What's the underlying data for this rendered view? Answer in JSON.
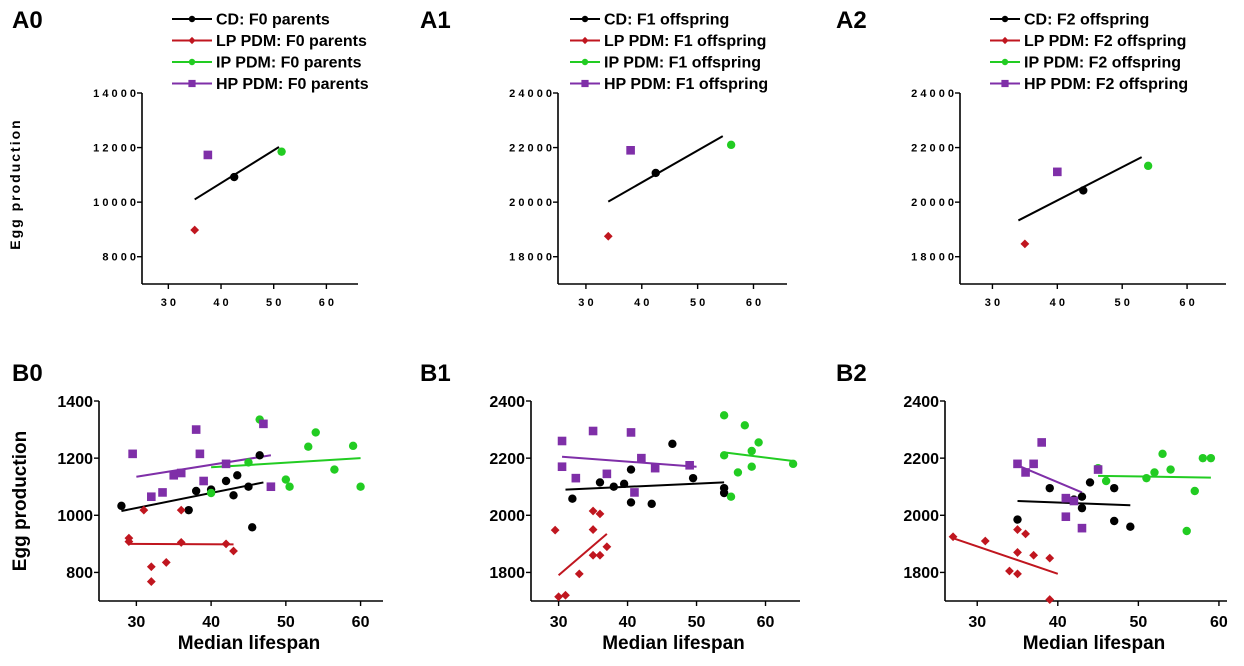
{
  "colors": {
    "CD": "#000000",
    "LP": "#c0161f",
    "IP": "#22cc22",
    "HP": "#7f2fa8"
  },
  "chart_data": [
    {
      "id": "A0",
      "type": "scatter",
      "label": "A0",
      "xlabel": "",
      "ylabel": "Egg production",
      "xlim": [
        25,
        66
      ],
      "ylim": [
        7000,
        14000
      ],
      "xticks": [
        30,
        40,
        50,
        60
      ],
      "yticks": [
        8000,
        10000,
        12000,
        14000
      ],
      "xtick_labels": [
        "3 0",
        "4 0",
        "5 0",
        "6 0"
      ],
      "ytick_labels": [
        "8 0 0 0",
        "1 0 0 0 0",
        "1 2 0 0 0",
        "1 4 0 0 0"
      ],
      "legend": [
        {
          "group": "CD",
          "name": "CD: F0 parents",
          "marker": "circle"
        },
        {
          "group": "LP",
          "name": "LP PDM: F0 parents",
          "marker": "diamond"
        },
        {
          "group": "IP",
          "name": "IP PDM: F0 parents",
          "marker": "circle"
        },
        {
          "group": "HP",
          "name": "HP PDM: F0 parents",
          "marker": "square"
        }
      ],
      "series": [
        {
          "group": "CD",
          "marker": "circle",
          "points": [
            [
              42.5,
              10920
            ]
          ]
        },
        {
          "group": "LP",
          "marker": "diamond",
          "points": [
            [
              35,
              8980
            ]
          ]
        },
        {
          "group": "IP",
          "marker": "circle",
          "points": [
            [
              51.5,
              11850
            ]
          ]
        },
        {
          "group": "HP",
          "marker": "square",
          "points": [
            [
              37.5,
              11730
            ]
          ]
        }
      ],
      "fits": [
        {
          "group": "CD",
          "from": [
            35,
            10100
          ],
          "to": [
            51,
            12020
          ]
        }
      ]
    },
    {
      "id": "A1",
      "type": "scatter",
      "label": "A1",
      "xlabel": "",
      "ylabel": "",
      "xlim": [
        25,
        66
      ],
      "ylim": [
        17000,
        24000
      ],
      "xticks": [
        30,
        40,
        50,
        60
      ],
      "yticks": [
        18000,
        20000,
        22000,
        24000
      ],
      "xtick_labels": [
        "3 0",
        "4 0",
        "5 0",
        "6 0"
      ],
      "ytick_labels": [
        "1 8 0 0 0",
        "2 0 0 0 0",
        "2 2 0 0 0",
        "2 4 0 0 0"
      ],
      "legend": [
        {
          "group": "CD",
          "name": "CD: F1 offspring",
          "marker": "circle"
        },
        {
          "group": "LP",
          "name": "LP PDM: F1 offspring",
          "marker": "diamond"
        },
        {
          "group": "IP",
          "name": "IP PDM: F1 offspring",
          "marker": "circle"
        },
        {
          "group": "HP",
          "name": "HP PDM: F1 offspring",
          "marker": "square"
        }
      ],
      "series": [
        {
          "group": "CD",
          "marker": "circle",
          "points": [
            [
              42.5,
              21070
            ]
          ]
        },
        {
          "group": "LP",
          "marker": "diamond",
          "points": [
            [
              34,
              18750
            ]
          ]
        },
        {
          "group": "IP",
          "marker": "circle",
          "points": [
            [
              56,
              22100
            ]
          ]
        },
        {
          "group": "HP",
          "marker": "square",
          "points": [
            [
              38,
              21900
            ]
          ]
        }
      ],
      "fits": [
        {
          "group": "CD",
          "from": [
            34,
            20020
          ],
          "to": [
            54.5,
            22420
          ]
        }
      ]
    },
    {
      "id": "A2",
      "type": "scatter",
      "label": "A2",
      "xlabel": "",
      "ylabel": "",
      "xlim": [
        25,
        66
      ],
      "ylim": [
        17000,
        24000
      ],
      "xticks": [
        30,
        40,
        50,
        60
      ],
      "yticks": [
        18000,
        20000,
        22000,
        24000
      ],
      "xtick_labels": [
        "3 0",
        "4 0",
        "5 0",
        "6 0"
      ],
      "ytick_labels": [
        "1 8 0 0 0",
        "2 0 0 0 0",
        "2 2 0 0 0",
        "2 4 0 0 0"
      ],
      "legend": [
        {
          "group": "CD",
          "name": "CD: F2 offspring",
          "marker": "circle"
        },
        {
          "group": "LP",
          "name": "LP PDM: F2 offspring",
          "marker": "diamond"
        },
        {
          "group": "IP",
          "name": "IP PDM: F2 offspring",
          "marker": "circle"
        },
        {
          "group": "HP",
          "name": "HP PDM: F2 offspring",
          "marker": "square"
        }
      ],
      "series": [
        {
          "group": "CD",
          "marker": "circle",
          "points": [
            [
              44,
              20430
            ]
          ]
        },
        {
          "group": "LP",
          "marker": "diamond",
          "points": [
            [
              35,
              18470
            ]
          ]
        },
        {
          "group": "IP",
          "marker": "circle",
          "points": [
            [
              54,
              21330
            ]
          ]
        },
        {
          "group": "HP",
          "marker": "square",
          "points": [
            [
              40,
              21110
            ]
          ]
        }
      ],
      "fits": [
        {
          "group": "CD",
          "from": [
            34,
            19330
          ],
          "to": [
            53,
            21650
          ]
        }
      ]
    },
    {
      "id": "B0",
      "type": "scatter",
      "label": "B0",
      "xlabel": "Median lifespan",
      "ylabel": "Egg production",
      "xlim": [
        25,
        63
      ],
      "ylim": [
        700,
        1400
      ],
      "xticks": [
        30,
        40,
        50,
        60
      ],
      "yticks": [
        800,
        1000,
        1200,
        1400
      ],
      "xtick_labels": [
        "30",
        "40",
        "50",
        "60"
      ],
      "ytick_labels": [
        "800",
        "1000",
        "1200",
        "1400"
      ],
      "legend": [],
      "series": [
        {
          "group": "CD",
          "marker": "circle",
          "points": [
            [
              28,
              1033
            ],
            [
              37,
              1018
            ],
            [
              38,
              1085
            ],
            [
              40,
              1090
            ],
            [
              42,
              1120
            ],
            [
              43,
              1070
            ],
            [
              43.5,
              1140
            ],
            [
              45,
              1100
            ],
            [
              45.5,
              958
            ],
            [
              46.5,
              1210
            ]
          ]
        },
        {
          "group": "LP",
          "marker": "diamond",
          "points": [
            [
              29,
              920
            ],
            [
              29,
              908
            ],
            [
              31,
              1018
            ],
            [
              32,
              820
            ],
            [
              32,
              768
            ],
            [
              34,
              835
            ],
            [
              36,
              1018
            ],
            [
              36,
              905
            ],
            [
              42,
              900
            ],
            [
              43,
              875
            ]
          ]
        },
        {
          "group": "IP",
          "marker": "circle",
          "points": [
            [
              40,
              1078
            ],
            [
              45,
              1185
            ],
            [
              46.5,
              1335
            ],
            [
              50,
              1125
            ],
            [
              50.5,
              1100
            ],
            [
              53,
              1240
            ],
            [
              54,
              1290
            ],
            [
              56.5,
              1160
            ],
            [
              59,
              1243
            ],
            [
              60,
              1100
            ]
          ]
        },
        {
          "group": "HP",
          "marker": "square",
          "points": [
            [
              29.5,
              1215
            ],
            [
              32,
              1065
            ],
            [
              33.5,
              1080
            ],
            [
              35,
              1140
            ],
            [
              36,
              1148
            ],
            [
              38,
              1300
            ],
            [
              38.5,
              1215
            ],
            [
              39,
              1120
            ],
            [
              42,
              1180
            ],
            [
              47,
              1320
            ],
            [
              48,
              1100
            ]
          ]
        }
      ],
      "fits": [
        {
          "group": "CD",
          "from": [
            28,
            1015
          ],
          "to": [
            47,
            1115
          ]
        },
        {
          "group": "LP",
          "from": [
            29,
            900
          ],
          "to": [
            43,
            898
          ]
        },
        {
          "group": "IP",
          "from": [
            40,
            1168
          ],
          "to": [
            60,
            1200
          ]
        },
        {
          "group": "HP",
          "from": [
            30,
            1135
          ],
          "to": [
            48,
            1210
          ]
        }
      ]
    },
    {
      "id": "B1",
      "type": "scatter",
      "label": "B1",
      "xlabel": "Median lifespan",
      "ylabel": "",
      "xlim": [
        26,
        65
      ],
      "ylim": [
        1700,
        2400
      ],
      "xticks": [
        30,
        40,
        50,
        60
      ],
      "yticks": [
        1800,
        2000,
        2200,
        2400
      ],
      "xtick_labels": [
        "30",
        "40",
        "50",
        "60"
      ],
      "ytick_labels": [
        "1800",
        "2000",
        "2200",
        "2400"
      ],
      "legend": [],
      "series": [
        {
          "group": "CD",
          "marker": "circle",
          "points": [
            [
              32,
              2058
            ],
            [
              36,
              2115
            ],
            [
              38,
              2100
            ],
            [
              39.5,
              2110
            ],
            [
              40.5,
              2045
            ],
            [
              40.5,
              2160
            ],
            [
              43.5,
              2040
            ],
            [
              46.5,
              2250
            ],
            [
              49.5,
              2130
            ],
            [
              54,
              2095
            ],
            [
              54,
              2078
            ]
          ]
        },
        {
          "group": "LP",
          "marker": "diamond",
          "points": [
            [
              29.5,
              1948
            ],
            [
              30,
              1715
            ],
            [
              31,
              1720
            ],
            [
              33,
              1795
            ],
            [
              35,
              2015
            ],
            [
              35,
              1950
            ],
            [
              35,
              1860
            ],
            [
              36,
              2005
            ],
            [
              36,
              1860
            ],
            [
              37,
              1890
            ]
          ]
        },
        {
          "group": "IP",
          "marker": "circle",
          "points": [
            [
              54,
              2350
            ],
            [
              54,
              2210
            ],
            [
              55,
              2065
            ],
            [
              56,
              2150
            ],
            [
              57,
              2315
            ],
            [
              58,
              2170
            ],
            [
              58,
              2225
            ],
            [
              59,
              2255
            ],
            [
              64,
              2180
            ]
          ]
        },
        {
          "group": "HP",
          "marker": "square",
          "points": [
            [
              30.5,
              2260
            ],
            [
              30.5,
              2170
            ],
            [
              32.5,
              2130
            ],
            [
              35,
              2295
            ],
            [
              37,
              2145
            ],
            [
              40.5,
              2290
            ],
            [
              41,
              2080
            ],
            [
              42,
              2200
            ],
            [
              44,
              2165
            ],
            [
              49,
              2175
            ]
          ]
        }
      ],
      "fits": [
        {
          "group": "CD",
          "from": [
            31,
            2090
          ],
          "to": [
            54,
            2115
          ]
        },
        {
          "group": "LP",
          "from": [
            30,
            1790
          ],
          "to": [
            37,
            1935
          ]
        },
        {
          "group": "IP",
          "from": [
            54,
            2220
          ],
          "to": [
            64,
            2190
          ]
        },
        {
          "group": "HP",
          "from": [
            30.5,
            2205
          ],
          "to": [
            50,
            2170
          ]
        }
      ]
    },
    {
      "id": "B2",
      "type": "scatter",
      "label": "B2",
      "xlabel": "Median lifespan",
      "ylabel": "",
      "xlim": [
        26,
        61
      ],
      "ylim": [
        1700,
        2400
      ],
      "xticks": [
        30,
        40,
        50,
        60
      ],
      "yticks": [
        1800,
        2000,
        2200,
        2400
      ],
      "xtick_labels": [
        "30",
        "40",
        "50",
        "60"
      ],
      "ytick_labels": [
        "1800",
        "2000",
        "2200",
        "2400"
      ],
      "legend": [],
      "series": [
        {
          "group": "CD",
          "marker": "circle",
          "points": [
            [
              35,
              1985
            ],
            [
              39,
              2095
            ],
            [
              41,
              2060
            ],
            [
              42,
              2055
            ],
            [
              43,
              2025
            ],
            [
              43,
              2065
            ],
            [
              44,
              2115
            ],
            [
              47,
              2095
            ],
            [
              47,
              1980
            ],
            [
              49,
              1960
            ]
          ]
        },
        {
          "group": "LP",
          "marker": "diamond",
          "points": [
            [
              27,
              1925
            ],
            [
              31,
              1910
            ],
            [
              34,
              1805
            ],
            [
              35,
              1795
            ],
            [
              35,
              1950
            ],
            [
              35,
              1870
            ],
            [
              36,
              1935
            ],
            [
              37,
              1860
            ],
            [
              39,
              1850
            ],
            [
              39,
              1705
            ]
          ]
        },
        {
          "group": "IP",
          "marker": "circle",
          "points": [
            [
              45,
              2165
            ],
            [
              46,
              2120
            ],
            [
              51,
              2130
            ],
            [
              52,
              2150
            ],
            [
              53,
              2215
            ],
            [
              54,
              2160
            ],
            [
              56,
              1945
            ],
            [
              57,
              2085
            ],
            [
              58,
              2200
            ],
            [
              59,
              2200
            ]
          ]
        },
        {
          "group": "HP",
          "marker": "square",
          "points": [
            [
              35,
              2180
            ],
            [
              36,
              2150
            ],
            [
              37,
              2180
            ],
            [
              38,
              2255
            ],
            [
              41,
              1995
            ],
            [
              41,
              2060
            ],
            [
              42,
              2050
            ],
            [
              43,
              1955
            ],
            [
              45,
              2160
            ]
          ]
        }
      ],
      "fits": [
        {
          "group": "CD",
          "from": [
            35,
            2050
          ],
          "to": [
            49,
            2035
          ]
        },
        {
          "group": "LP",
          "from": [
            27,
            1920
          ],
          "to": [
            40,
            1795
          ]
        },
        {
          "group": "IP",
          "from": [
            45,
            2138
          ],
          "to": [
            59,
            2132
          ]
        },
        {
          "group": "HP",
          "from": [
            35,
            2175
          ],
          "to": [
            43,
            2080
          ]
        }
      ]
    }
  ]
}
